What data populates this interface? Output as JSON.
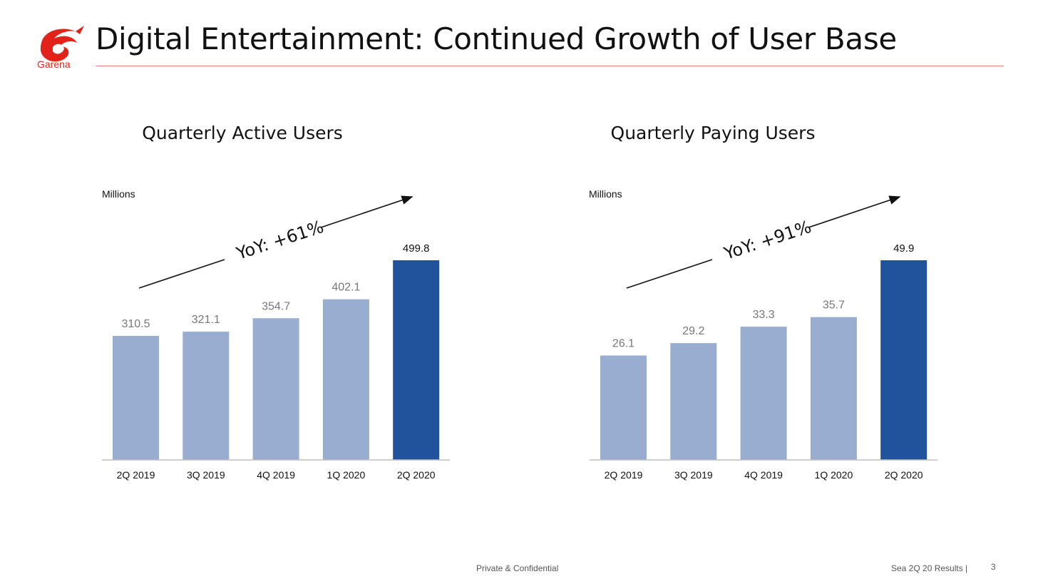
{
  "header": {
    "title": "Digital Entertainment: Continued Growth of User Base",
    "logo_text": "Garena"
  },
  "footer": {
    "confidential": "Private & Confidential",
    "results": "Sea 2Q 20 Results |",
    "page_number": "3"
  },
  "colors": {
    "bar_light": "#98adcf",
    "bar_highlight": "#21529c",
    "brand_red": "#e2231a"
  },
  "chart_data": [
    {
      "type": "bar",
      "title": "Quarterly Active Users",
      "unit": "Millions",
      "categories": [
        "2Q 2019",
        "3Q 2019",
        "4Q 2019",
        "1Q 2020",
        "2Q 2020"
      ],
      "values": [
        310.5,
        321.1,
        354.7,
        402.1,
        499.8
      ],
      "value_labels": [
        "310.5",
        "321.1",
        "354.7",
        "402.1",
        "499.8"
      ],
      "highlight_index": 4,
      "annotation": "YoY: +61%",
      "ylim": [
        0,
        500
      ]
    },
    {
      "type": "bar",
      "title": "Quarterly Paying Users",
      "unit": "Millions",
      "categories": [
        "2Q 2019",
        "3Q 2019",
        "4Q 2019",
        "1Q 2020",
        "2Q 2020"
      ],
      "values": [
        26.1,
        29.2,
        33.3,
        35.7,
        49.9
      ],
      "value_labels": [
        "26.1",
        "29.2",
        "33.3",
        "35.7",
        "49.9"
      ],
      "highlight_index": 4,
      "annotation": "YoY: +91%",
      "ylim": [
        0,
        50
      ]
    }
  ]
}
